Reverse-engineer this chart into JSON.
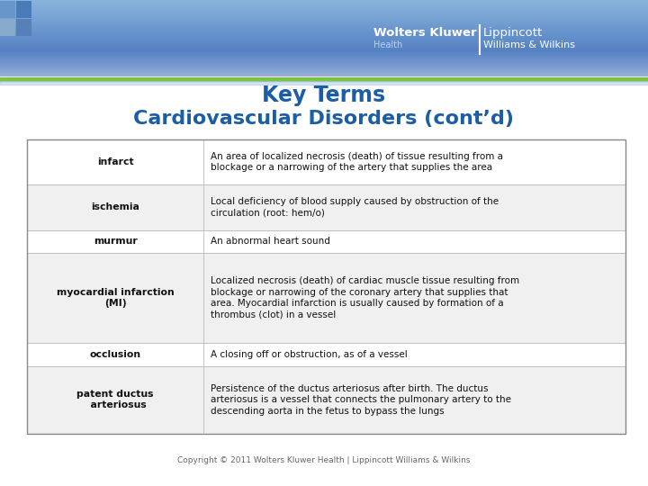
{
  "title_line1": "Key Terms",
  "title_line2": "Cardiovascular Disorders (cont’d)",
  "title_color": "#1B5EA6",
  "bg_color": "#FFFFFF",
  "green_line_color": "#7DC142",
  "light_blue_line": "#A8C8E8",
  "table_rows": [
    {
      "term": "infarct",
      "definition": "An area of localized necrosis (death) of tissue resulting from a\nblockage or a narrowing of the artery that supplies the area",
      "row_bg": "#FFFFFF"
    },
    {
      "term": "ischemia",
      "definition": "Local deficiency of blood supply caused by obstruction of the\ncirculation (root: hem/o)",
      "row_bg": "#F0F0F0"
    },
    {
      "term": "murmur",
      "definition": "An abnormal heart sound",
      "row_bg": "#FFFFFF"
    },
    {
      "term": "myocardial infarction\n(MI)",
      "definition": "Localized necrosis (death) of cardiac muscle tissue resulting from\nblockage or narrowing of the coronary artery that supplies that\narea. Myocardial infarction is usually caused by formation of a\nthrombus (clot) in a vessel",
      "row_bg": "#F0F0F0"
    },
    {
      "term": "occlusion",
      "definition": "A closing off or obstruction, as of a vessel",
      "row_bg": "#FFFFFF"
    },
    {
      "term": "patent ductus\n  arteriosus",
      "definition": "Persistence of the ductus arteriosus after birth. The ductus\narteriosus is a vessel that connects the pulmonary artery to the\ndescending aorta in the fetus to bypass the lungs",
      "row_bg": "#F0F0F0"
    }
  ],
  "copyright": "Copyright © 2011 Wolters Kluwer Health | Lippincott Williams & Wilkins",
  "footer_color": "#666666",
  "header_grad_top": "#8AB4DC",
  "header_grad_mid": "#5588C8",
  "header_grad_bot": "#4070B8",
  "logo_text1": "Wolters Kluwer",
  "logo_text2": "Health",
  "logo_text3": "Lippincott",
  "logo_text4": "Williams & Wilkins"
}
